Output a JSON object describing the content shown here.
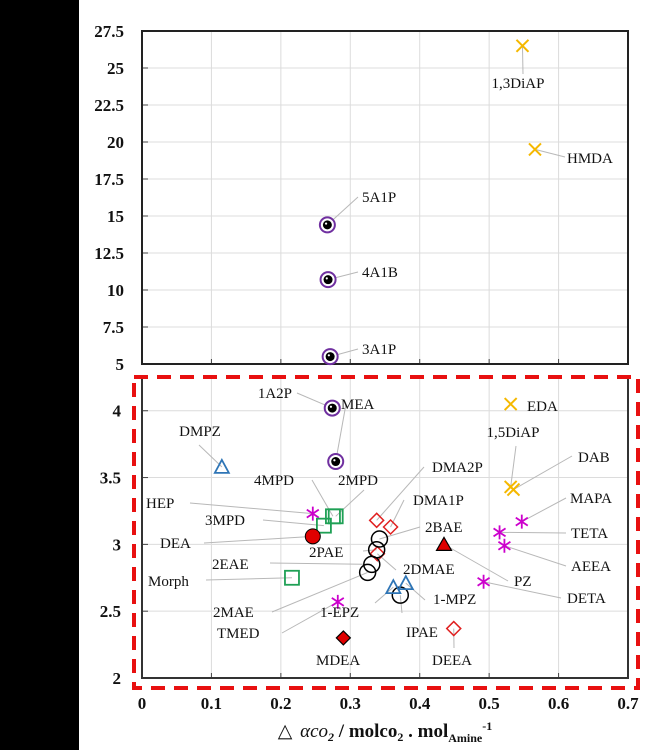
{
  "chart_data": {
    "type": "scatter",
    "title": "",
    "xlabel": {
      "prefix": "△",
      "symbol": "αco",
      "symbol_sub": "2",
      "slash": " / ",
      "unit1": "molco",
      "unit1_sub": "2",
      "dot": " . ",
      "unit2": "mol",
      "unit2_sub": "Amine",
      "unit2_sup": "-1"
    },
    "ylabel": "",
    "xlim": [
      0,
      0.7
    ],
    "x_ticks": [
      "0",
      "0.1",
      "0.2",
      "0.3",
      "0.4",
      "0.5",
      "0.6",
      "0.7"
    ],
    "grid": true,
    "panels": [
      {
        "name": "upper",
        "ylim": [
          5,
          27.5
        ],
        "y_ticks": [
          "5",
          "7.5",
          "10",
          "12.5",
          "15",
          "17.5",
          "20",
          "22.5",
          "25",
          "27.5"
        ]
      },
      {
        "name": "lower",
        "ylim": [
          2,
          4.26
        ],
        "y_ticks": [
          "2",
          "2.5",
          "3",
          "3.5",
          "4"
        ],
        "highlight": "red-dashed-box"
      }
    ],
    "marker_styles": {
      "alkanolamine-dot": {
        "shape": "circle-dot",
        "color": "#7030A0"
      },
      "diamine-x": {
        "shape": "x",
        "color": "#F5B800"
      },
      "polyamine-star": {
        "shape": "asterisk",
        "color": "#CC00CC"
      },
      "piperazine-triangle": {
        "shape": "triangle-open",
        "color": "#2E75B6"
      },
      "piperidine-square": {
        "shape": "square-open",
        "color": "#1FA055"
      },
      "amine-circle": {
        "shape": "circle-open",
        "color": "#000000"
      },
      "tertiary-diamond": {
        "shape": "diamond-open",
        "color": "#E02020"
      },
      "filled-circle": {
        "shape": "circle-filled",
        "color": "#E00000"
      },
      "filled-diamond": {
        "shape": "diamond-filled",
        "color": "#E00000"
      },
      "filled-triangle": {
        "shape": "triangle-filled",
        "color": "#E00000"
      }
    },
    "points": [
      {
        "label": "1,3DiAP",
        "x": 0.548,
        "y": 26.5,
        "panel": "upper",
        "style": "diamine-x"
      },
      {
        "label": "HMDA",
        "x": 0.566,
        "y": 19.5,
        "panel": "upper",
        "style": "diamine-x"
      },
      {
        "label": "5A1P",
        "x": 0.267,
        "y": 14.4,
        "panel": "upper",
        "style": "alkanolamine-dot"
      },
      {
        "label": "4A1B",
        "x": 0.268,
        "y": 10.7,
        "panel": "upper",
        "style": "alkanolamine-dot"
      },
      {
        "label": "3A1P",
        "x": 0.271,
        "y": 5.5,
        "panel": "upper",
        "style": "alkanolamine-dot"
      },
      {
        "label": "1A2P",
        "x": 0.274,
        "y": 4.02,
        "panel": "lower",
        "style": "alkanolamine-dot"
      },
      {
        "label": "MEA",
        "x": 0.279,
        "y": 3.62,
        "panel": "lower",
        "style": "alkanolamine-dot"
      },
      {
        "label": "EDA",
        "x": 0.531,
        "y": 4.05,
        "panel": "lower",
        "style": "diamine-x"
      },
      {
        "label": "1,5DiAP",
        "x": 0.531,
        "y": 3.43,
        "panel": "lower",
        "style": "diamine-x"
      },
      {
        "label": "DAB",
        "x": 0.535,
        "y": 3.41,
        "panel": "lower",
        "style": "diamine-x"
      },
      {
        "label": "DMPZ",
        "x": 0.115,
        "y": 3.58,
        "panel": "lower",
        "style": "piperazine-triangle"
      },
      {
        "label": "MAPA",
        "x": 0.547,
        "y": 3.17,
        "panel": "lower",
        "style": "polyamine-star"
      },
      {
        "label": "TETA",
        "x": 0.515,
        "y": 3.09,
        "panel": "lower",
        "style": "polyamine-star"
      },
      {
        "label": "AEEA",
        "x": 0.522,
        "y": 2.99,
        "panel": "lower",
        "style": "polyamine-star"
      },
      {
        "label": "DETA",
        "x": 0.492,
        "y": 2.72,
        "panel": "lower",
        "style": "polyamine-star"
      },
      {
        "label": "HEP",
        "x": 0.246,
        "y": 3.23,
        "panel": "lower",
        "style": "polyamine-star"
      },
      {
        "label": "TMED",
        "x": 0.282,
        "y": 2.57,
        "panel": "lower",
        "style": "polyamine-star"
      },
      {
        "label": "4MPD",
        "x": 0.275,
        "y": 3.21,
        "panel": "lower",
        "style": "piperidine-square"
      },
      {
        "label": "2MPD",
        "x": 0.279,
        "y": 3.21,
        "panel": "lower",
        "style": "piperidine-square"
      },
      {
        "label": "3MPD",
        "x": 0.262,
        "y": 3.14,
        "panel": "lower",
        "style": "piperidine-square"
      },
      {
        "label": "Morph",
        "x": 0.216,
        "y": 2.75,
        "panel": "lower",
        "style": "piperidine-square"
      },
      {
        "label": "DEA",
        "x": 0.246,
        "y": 3.06,
        "panel": "lower",
        "style": "filled-circle"
      },
      {
        "label": "DMA2P",
        "x": 0.338,
        "y": 3.18,
        "panel": "lower",
        "style": "tertiary-diamond"
      },
      {
        "label": "DMA1P",
        "x": 0.358,
        "y": 3.13,
        "panel": "lower",
        "style": "tertiary-diamond"
      },
      {
        "label": "2DMAE",
        "x": 0.339,
        "y": 2.93,
        "panel": "lower",
        "style": "tertiary-diamond"
      },
      {
        "label": "DEEA",
        "x": 0.449,
        "y": 2.37,
        "panel": "lower",
        "style": "tertiary-diamond"
      },
      {
        "label": "MDEA",
        "x": 0.29,
        "y": 2.3,
        "panel": "lower",
        "style": "filled-diamond"
      },
      {
        "label": "2BAE",
        "x": 0.342,
        "y": 3.04,
        "panel": "lower",
        "style": "amine-circle"
      },
      {
        "label": "2PAE",
        "x": 0.338,
        "y": 2.96,
        "panel": "lower",
        "style": "amine-circle"
      },
      {
        "label": "2EAE",
        "x": 0.331,
        "y": 2.85,
        "panel": "lower",
        "style": "amine-circle"
      },
      {
        "label": "2MAE",
        "x": 0.325,
        "y": 2.79,
        "panel": "lower",
        "style": "amine-circle"
      },
      {
        "label": "IPAE",
        "x": 0.372,
        "y": 2.62,
        "panel": "lower",
        "style": "amine-circle"
      },
      {
        "label": "PZ",
        "x": 0.435,
        "y": 3.0,
        "panel": "lower",
        "style": "filled-triangle"
      },
      {
        "label": "1-EPZ",
        "x": 0.362,
        "y": 2.68,
        "panel": "lower",
        "style": "piperazine-triangle"
      },
      {
        "label": "1-MPZ",
        "x": 0.38,
        "y": 2.71,
        "panel": "lower",
        "style": "piperazine-triangle"
      }
    ]
  }
}
